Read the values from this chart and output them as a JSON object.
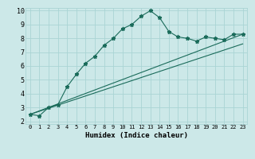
{
  "xlabel": "Humidex (Indice chaleur)",
  "bg_color": "#cce8e8",
  "grid_color": "#aad4d4",
  "line_color": "#1a6b5a",
  "xlim": [
    -0.5,
    23.5
  ],
  "ylim": [
    1.8,
    10.2
  ],
  "x_ticks": [
    0,
    1,
    2,
    3,
    4,
    5,
    6,
    7,
    8,
    9,
    10,
    11,
    12,
    13,
    14,
    15,
    16,
    17,
    18,
    19,
    20,
    21,
    22,
    23
  ],
  "y_ticks": [
    2,
    3,
    4,
    5,
    6,
    7,
    8,
    9,
    10
  ],
  "main_x": [
    0,
    1,
    2,
    3,
    4,
    5,
    6,
    7,
    8,
    9,
    10,
    11,
    12,
    13,
    14,
    15,
    16,
    17,
    18,
    19,
    20,
    21,
    22,
    23
  ],
  "main_y": [
    2.5,
    2.4,
    3.0,
    3.2,
    4.5,
    5.4,
    6.2,
    6.7,
    7.5,
    8.0,
    8.7,
    9.0,
    9.6,
    10.0,
    9.5,
    8.5,
    8.1,
    8.0,
    7.8,
    8.1,
    8.0,
    7.9,
    8.3,
    8.3
  ],
  "line2_x": [
    0,
    23
  ],
  "line2_y": [
    2.5,
    8.3
  ],
  "line3_x": [
    0,
    23
  ],
  "line3_y": [
    2.5,
    7.6
  ]
}
